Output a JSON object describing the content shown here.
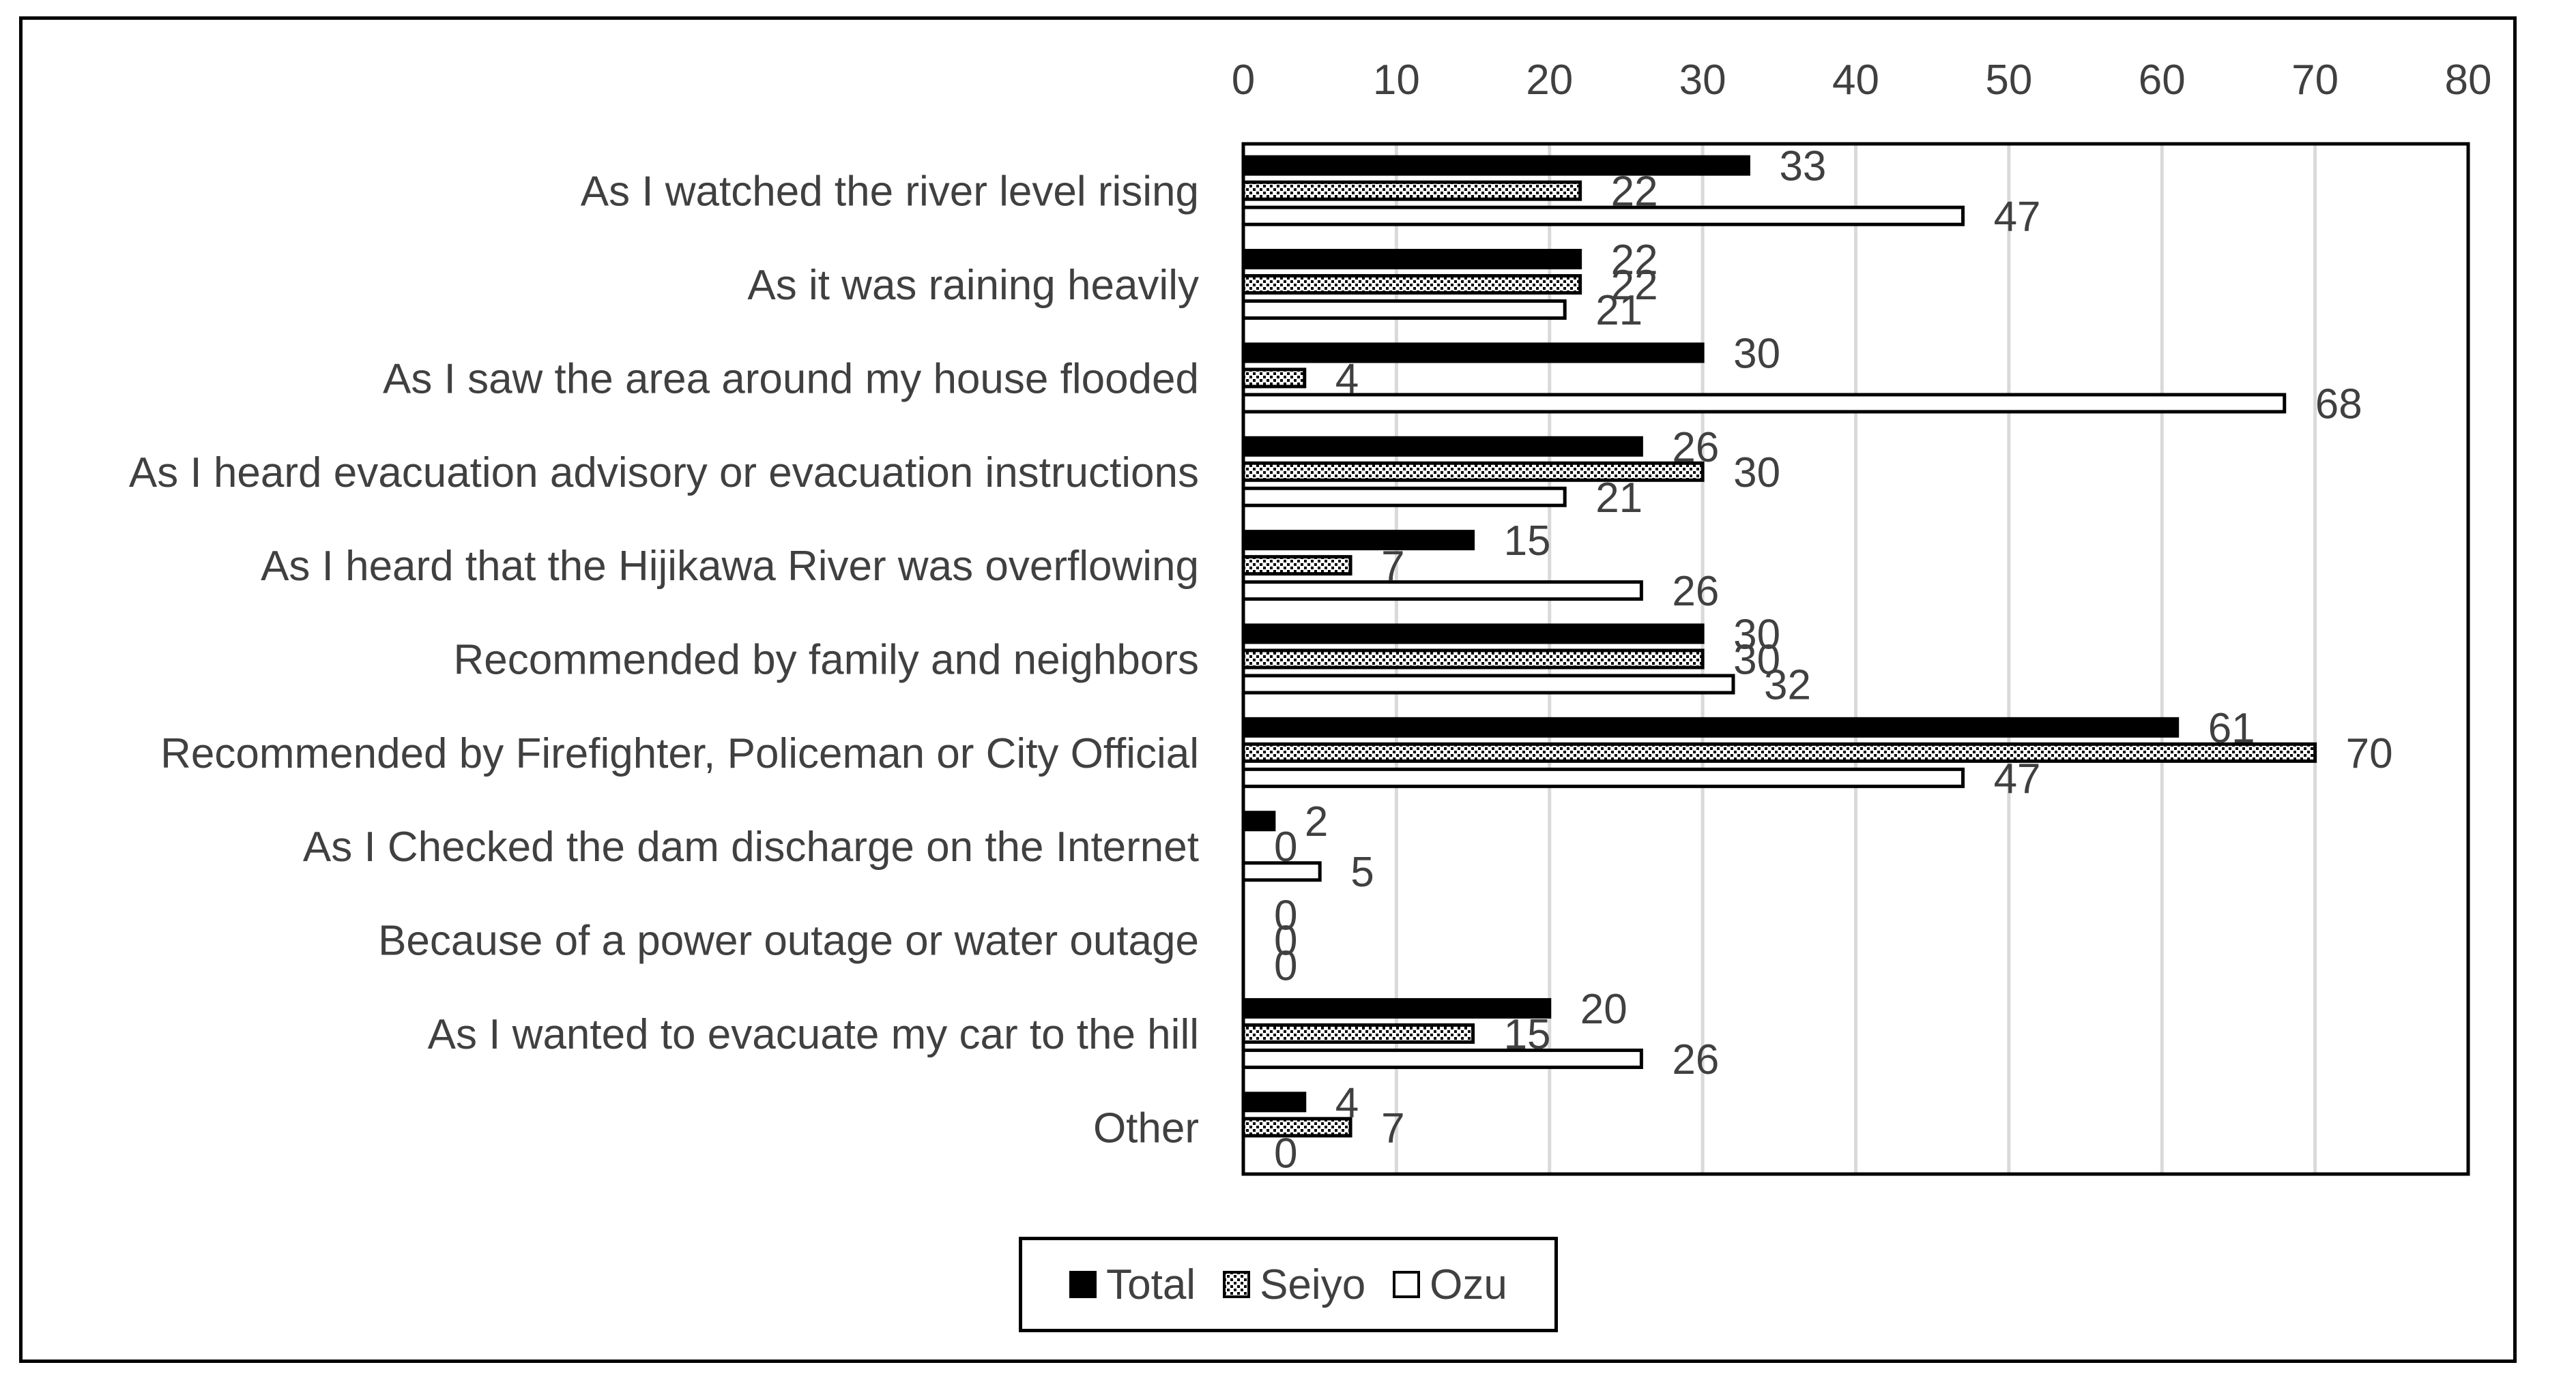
{
  "chart_data": {
    "type": "bar",
    "orientation": "horizontal",
    "categories": [
      "As I watched the river level rising",
      "As it was raining heavily",
      "As I saw the area around my house flooded",
      "As I heard evacuation advisory or evacuation instructions",
      "As I heard that the Hijikawa River was overflowing",
      "Recommended by family and neighbors",
      "Recommended by Firefighter, Policeman or City Official",
      "As I Checked the dam discharge on the Internet",
      "Because of a power outage or water outage",
      "As I wanted to evacuate my car to the hill",
      "Other"
    ],
    "series": [
      {
        "name": "Total",
        "values": [
          33,
          22,
          30,
          26,
          15,
          30,
          61,
          2,
          0,
          20,
          4
        ],
        "color": "#000000",
        "pattern": "solid"
      },
      {
        "name": "Seiyo",
        "values": [
          22,
          22,
          4,
          30,
          7,
          30,
          70,
          0,
          0,
          15,
          7
        ],
        "color": "#000000",
        "pattern": "dotted"
      },
      {
        "name": "Ozu",
        "values": [
          47,
          21,
          68,
          21,
          26,
          32,
          47,
          5,
          0,
          26,
          0
        ],
        "color": "#ffffff",
        "pattern": "hollow"
      }
    ],
    "xlim": [
      0,
      80
    ],
    "ticks": [
      0,
      10,
      20,
      30,
      40,
      50,
      60,
      70,
      80
    ],
    "grid": true,
    "axis_position": "top",
    "legend_position": "bottom",
    "title": "",
    "xlabel": "",
    "ylabel": ""
  }
}
